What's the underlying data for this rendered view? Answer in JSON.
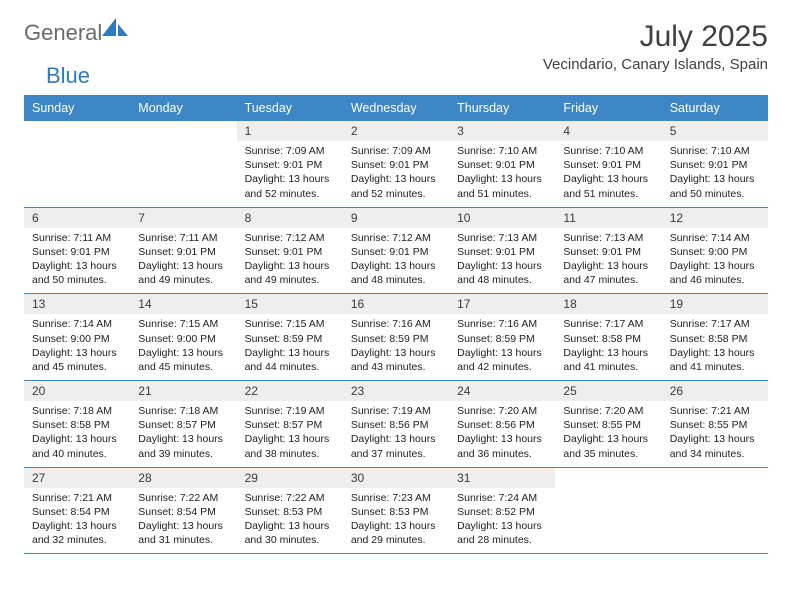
{
  "brand": {
    "text1": "General",
    "text2": "Blue"
  },
  "header": {
    "title": "July 2025",
    "location": "Vecindario, Canary Islands, Spain"
  },
  "style": {
    "header_bg": "#3d87c7",
    "header_text_color": "#ffffff",
    "daynum_bg": "#eeeeee",
    "border_color": "#3d87c7",
    "body_font_size": 10.5,
    "daynum_font_size": 12,
    "title_font_size": 30,
    "location_font_size": 15,
    "weekday_font_size": 12.5
  },
  "calendar": {
    "columns": [
      "Sunday",
      "Monday",
      "Tuesday",
      "Wednesday",
      "Thursday",
      "Friday",
      "Saturday"
    ],
    "weeks": [
      [
        null,
        null,
        {
          "day": "1",
          "sunrise": "Sunrise: 7:09 AM",
          "sunset": "Sunset: 9:01 PM",
          "daylight": "Daylight: 13 hours and 52 minutes."
        },
        {
          "day": "2",
          "sunrise": "Sunrise: 7:09 AM",
          "sunset": "Sunset: 9:01 PM",
          "daylight": "Daylight: 13 hours and 52 minutes."
        },
        {
          "day": "3",
          "sunrise": "Sunrise: 7:10 AM",
          "sunset": "Sunset: 9:01 PM",
          "daylight": "Daylight: 13 hours and 51 minutes."
        },
        {
          "day": "4",
          "sunrise": "Sunrise: 7:10 AM",
          "sunset": "Sunset: 9:01 PM",
          "daylight": "Daylight: 13 hours and 51 minutes."
        },
        {
          "day": "5",
          "sunrise": "Sunrise: 7:10 AM",
          "sunset": "Sunset: 9:01 PM",
          "daylight": "Daylight: 13 hours and 50 minutes."
        }
      ],
      [
        {
          "day": "6",
          "sunrise": "Sunrise: 7:11 AM",
          "sunset": "Sunset: 9:01 PM",
          "daylight": "Daylight: 13 hours and 50 minutes."
        },
        {
          "day": "7",
          "sunrise": "Sunrise: 7:11 AM",
          "sunset": "Sunset: 9:01 PM",
          "daylight": "Daylight: 13 hours and 49 minutes."
        },
        {
          "day": "8",
          "sunrise": "Sunrise: 7:12 AM",
          "sunset": "Sunset: 9:01 PM",
          "daylight": "Daylight: 13 hours and 49 minutes."
        },
        {
          "day": "9",
          "sunrise": "Sunrise: 7:12 AM",
          "sunset": "Sunset: 9:01 PM",
          "daylight": "Daylight: 13 hours and 48 minutes."
        },
        {
          "day": "10",
          "sunrise": "Sunrise: 7:13 AM",
          "sunset": "Sunset: 9:01 PM",
          "daylight": "Daylight: 13 hours and 48 minutes."
        },
        {
          "day": "11",
          "sunrise": "Sunrise: 7:13 AM",
          "sunset": "Sunset: 9:01 PM",
          "daylight": "Daylight: 13 hours and 47 minutes."
        },
        {
          "day": "12",
          "sunrise": "Sunrise: 7:14 AM",
          "sunset": "Sunset: 9:00 PM",
          "daylight": "Daylight: 13 hours and 46 minutes."
        }
      ],
      [
        {
          "day": "13",
          "sunrise": "Sunrise: 7:14 AM",
          "sunset": "Sunset: 9:00 PM",
          "daylight": "Daylight: 13 hours and 45 minutes."
        },
        {
          "day": "14",
          "sunrise": "Sunrise: 7:15 AM",
          "sunset": "Sunset: 9:00 PM",
          "daylight": "Daylight: 13 hours and 45 minutes."
        },
        {
          "day": "15",
          "sunrise": "Sunrise: 7:15 AM",
          "sunset": "Sunset: 8:59 PM",
          "daylight": "Daylight: 13 hours and 44 minutes."
        },
        {
          "day": "16",
          "sunrise": "Sunrise: 7:16 AM",
          "sunset": "Sunset: 8:59 PM",
          "daylight": "Daylight: 13 hours and 43 minutes."
        },
        {
          "day": "17",
          "sunrise": "Sunrise: 7:16 AM",
          "sunset": "Sunset: 8:59 PM",
          "daylight": "Daylight: 13 hours and 42 minutes."
        },
        {
          "day": "18",
          "sunrise": "Sunrise: 7:17 AM",
          "sunset": "Sunset: 8:58 PM",
          "daylight": "Daylight: 13 hours and 41 minutes."
        },
        {
          "day": "19",
          "sunrise": "Sunrise: 7:17 AM",
          "sunset": "Sunset: 8:58 PM",
          "daylight": "Daylight: 13 hours and 41 minutes."
        }
      ],
      [
        {
          "day": "20",
          "sunrise": "Sunrise: 7:18 AM",
          "sunset": "Sunset: 8:58 PM",
          "daylight": "Daylight: 13 hours and 40 minutes."
        },
        {
          "day": "21",
          "sunrise": "Sunrise: 7:18 AM",
          "sunset": "Sunset: 8:57 PM",
          "daylight": "Daylight: 13 hours and 39 minutes."
        },
        {
          "day": "22",
          "sunrise": "Sunrise: 7:19 AM",
          "sunset": "Sunset: 8:57 PM",
          "daylight": "Daylight: 13 hours and 38 minutes."
        },
        {
          "day": "23",
          "sunrise": "Sunrise: 7:19 AM",
          "sunset": "Sunset: 8:56 PM",
          "daylight": "Daylight: 13 hours and 37 minutes."
        },
        {
          "day": "24",
          "sunrise": "Sunrise: 7:20 AM",
          "sunset": "Sunset: 8:56 PM",
          "daylight": "Daylight: 13 hours and 36 minutes."
        },
        {
          "day": "25",
          "sunrise": "Sunrise: 7:20 AM",
          "sunset": "Sunset: 8:55 PM",
          "daylight": "Daylight: 13 hours and 35 minutes."
        },
        {
          "day": "26",
          "sunrise": "Sunrise: 7:21 AM",
          "sunset": "Sunset: 8:55 PM",
          "daylight": "Daylight: 13 hours and 34 minutes."
        }
      ],
      [
        {
          "day": "27",
          "sunrise": "Sunrise: 7:21 AM",
          "sunset": "Sunset: 8:54 PM",
          "daylight": "Daylight: 13 hours and 32 minutes."
        },
        {
          "day": "28",
          "sunrise": "Sunrise: 7:22 AM",
          "sunset": "Sunset: 8:54 PM",
          "daylight": "Daylight: 13 hours and 31 minutes."
        },
        {
          "day": "29",
          "sunrise": "Sunrise: 7:22 AM",
          "sunset": "Sunset: 8:53 PM",
          "daylight": "Daylight: 13 hours and 30 minutes."
        },
        {
          "day": "30",
          "sunrise": "Sunrise: 7:23 AM",
          "sunset": "Sunset: 8:53 PM",
          "daylight": "Daylight: 13 hours and 29 minutes."
        },
        {
          "day": "31",
          "sunrise": "Sunrise: 7:24 AM",
          "sunset": "Sunset: 8:52 PM",
          "daylight": "Daylight: 13 hours and 28 minutes."
        },
        null,
        null
      ]
    ]
  }
}
